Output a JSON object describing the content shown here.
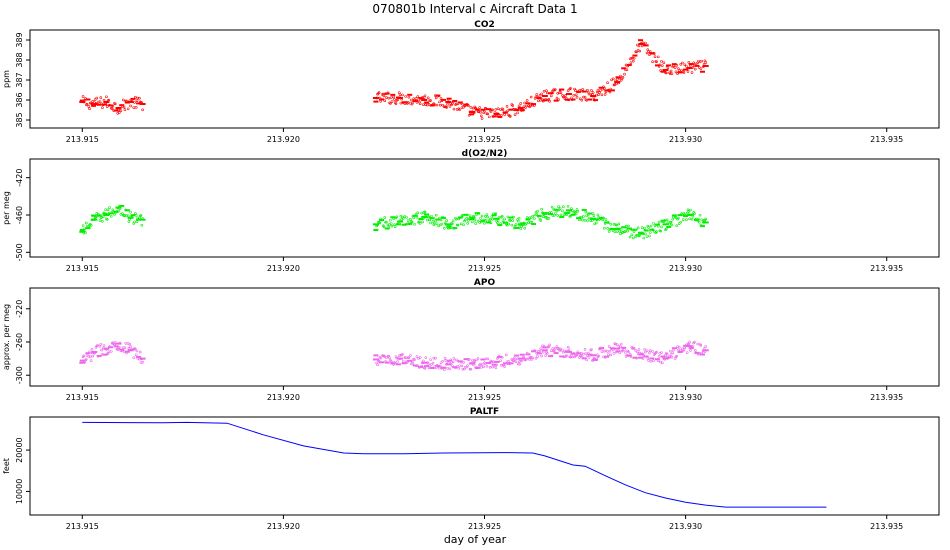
{
  "figure": {
    "title": "070801b   Interval c Aircraft Data 1",
    "xlabel": "day of year"
  },
  "chart_data": [
    {
      "type": "scatter",
      "title": "CO2",
      "ylabel": "ppm",
      "xlim": [
        213.9137,
        213.9363
      ],
      "ylim": [
        384.6,
        389.5
      ],
      "xticks": [
        "213.915",
        "213.920",
        "213.925",
        "213.930",
        "213.935"
      ],
      "yticks": [
        "385",
        "386",
        "387",
        "388",
        "389"
      ],
      "color": "#ff0000",
      "series": [
        {
          "x": [
            213.915,
            213.9153,
            213.9156,
            213.9159,
            213.9162,
            213.9165,
            213.9223,
            213.9229,
            213.9235,
            213.9241,
            213.9247,
            213.9253,
            213.9259,
            213.9265,
            213.9271,
            213.9277,
            213.9283,
            213.9289,
            213.9295,
            213.9301,
            213.9305
          ],
          "y": [
            385.9,
            385.8,
            385.9,
            385.6,
            385.9,
            385.8,
            386.1,
            386.1,
            386.0,
            385.9,
            385.4,
            385.3,
            385.6,
            386.2,
            386.3,
            386.2,
            386.9,
            388.8,
            387.5,
            387.6,
            387.7
          ]
        }
      ]
    },
    {
      "type": "scatter",
      "title": "d(O2/N2)",
      "ylabel": "per meg",
      "xlim": [
        213.9137,
        213.9363
      ],
      "ylim": [
        -505,
        -400
      ],
      "xticks": [
        "213.915",
        "213.920",
        "213.925",
        "213.930",
        "213.935"
      ],
      "yticks": [
        "-420",
        "-460",
        "-500"
      ],
      "color": "#00ee00",
      "series": [
        {
          "x": [
            213.915,
            213.9153,
            213.9156,
            213.9159,
            213.9162,
            213.9165,
            213.9223,
            213.9229,
            213.9235,
            213.9241,
            213.9247,
            213.9253,
            213.9259,
            213.9265,
            213.9271,
            213.9277,
            213.9283,
            213.9289,
            213.9295,
            213.9301,
            213.9305
          ],
          "y": [
            -478,
            -465,
            -460,
            -452,
            -463,
            -465,
            -470,
            -467,
            -462,
            -470,
            -463,
            -464,
            -470,
            -458,
            -455,
            -464,
            -475,
            -480,
            -470,
            -460,
            -468
          ]
        }
      ]
    },
    {
      "type": "scatter",
      "title": "APO",
      "ylabel": "approx. per meg",
      "xlim": [
        213.9137,
        213.9363
      ],
      "ylim": [
        -313,
        -195
      ],
      "xticks": [
        "213.915",
        "213.920",
        "213.925",
        "213.930",
        "213.935"
      ],
      "yticks": [
        "-220",
        "-260",
        "-300"
      ],
      "color": "#ee66ee",
      "series": [
        {
          "x": [
            213.915,
            213.9153,
            213.9156,
            213.9159,
            213.9162,
            213.9165,
            213.9223,
            213.9229,
            213.9235,
            213.9241,
            213.9247,
            213.9253,
            213.9259,
            213.9265,
            213.9271,
            213.9277,
            213.9283,
            213.9289,
            213.9295,
            213.9301,
            213.9305
          ],
          "y": [
            -285,
            -272,
            -268,
            -262,
            -270,
            -280,
            -281,
            -280,
            -285,
            -287,
            -286,
            -284,
            -280,
            -270,
            -272,
            -276,
            -268,
            -275,
            -280,
            -265,
            -270
          ]
        }
      ]
    },
    {
      "type": "line",
      "title": "PALTF",
      "ylabel": "feet",
      "xlim": [
        213.9137,
        213.9363
      ],
      "ylim": [
        4300,
        28000
      ],
      "xticks": [
        "213.915",
        "213.920",
        "213.925",
        "213.930",
        "213.935"
      ],
      "yticks": [
        "10000",
        "20000"
      ],
      "color": "#0000ff",
      "series": [
        {
          "x": [
            213.915,
            213.917,
            213.9176,
            213.9186,
            213.9195,
            213.9205,
            213.9215,
            213.922,
            213.923,
            213.924,
            213.9255,
            213.9262,
            213.9265,
            213.9272,
            213.9275,
            213.928,
            213.9285,
            213.929,
            213.9295,
            213.93,
            213.9305,
            213.931,
            213.9335
          ],
          "y": [
            26700,
            26600,
            26700,
            26500,
            23700,
            21000,
            19300,
            19100,
            19100,
            19300,
            19400,
            19300,
            18600,
            16400,
            16100,
            13800,
            11600,
            9700,
            8400,
            7400,
            6700,
            6200,
            6200
          ]
        }
      ]
    }
  ]
}
